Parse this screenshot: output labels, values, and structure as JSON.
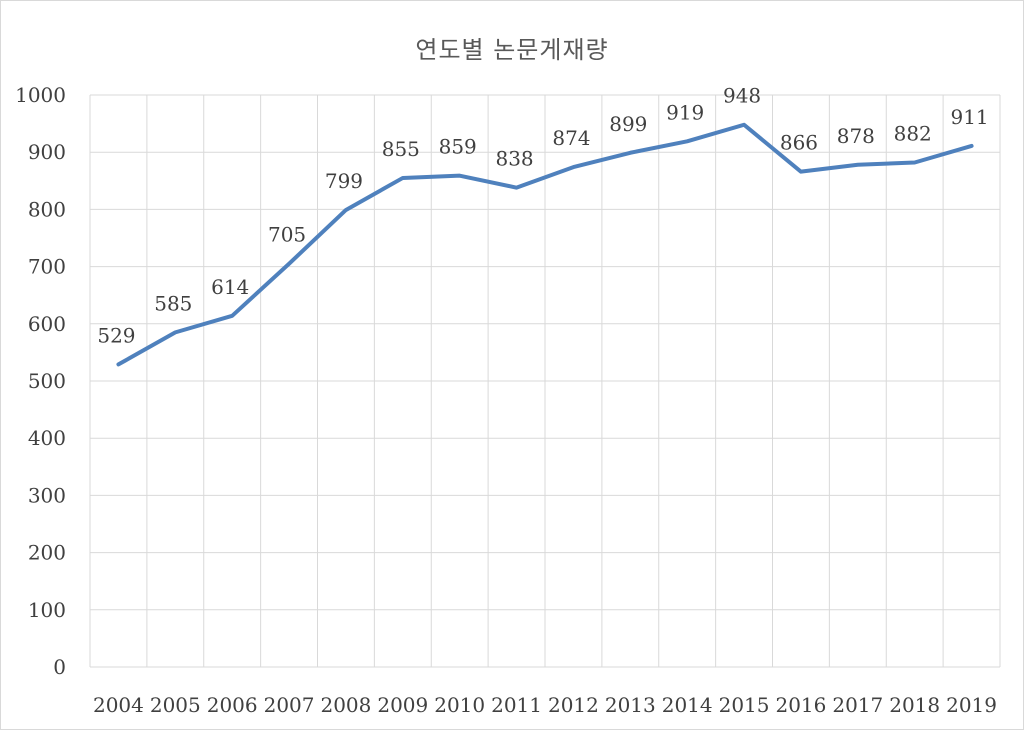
{
  "chart_data": {
    "type": "line",
    "title": "연도별 논문게재량",
    "xlabel": "",
    "ylabel": "",
    "categories": [
      "2004",
      "2005",
      "2006",
      "2007",
      "2008",
      "2009",
      "2010",
      "2011",
      "2012",
      "2013",
      "2014",
      "2015",
      "2016",
      "2017",
      "2018",
      "2019"
    ],
    "series": [
      {
        "values": [
          529,
          585,
          614,
          705,
          799,
          855,
          859,
          838,
          874,
          899,
          919,
          948,
          866,
          878,
          882,
          911
        ],
        "color": "#4f81bd"
      }
    ],
    "ylim": [
      0,
      1000
    ],
    "yticks": [
      0,
      100,
      200,
      300,
      400,
      500,
      600,
      700,
      800,
      900,
      1000
    ],
    "grid": true,
    "legend": "none",
    "data_labels": true
  },
  "colors": {
    "line": "#4f81bd",
    "grid": "#d9d9d9",
    "text": "#404040",
    "title": "#595959"
  }
}
